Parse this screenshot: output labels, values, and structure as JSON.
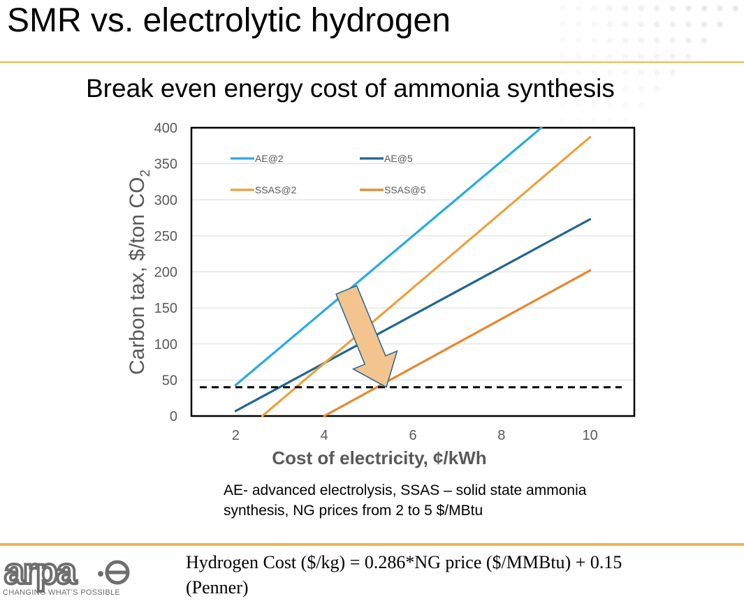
{
  "slide": {
    "title": "SMR vs. electrolytic hydrogen",
    "accent_color": "#f2b64f",
    "note": "AE- advanced electrolysis, SSAS – solid state ammonia synthesis, NG prices from 2 to 5 $/MBtu",
    "formula_line1": "Hydrogen Cost ($/kg) = 0.286*NG price ($/MMBtu) + 0.15",
    "formula_line2": "(Penner)",
    "logo_text": "arpa·e",
    "tagline": "CHANGING WHAT'S POSSIBLE"
  },
  "chart_data": {
    "type": "line",
    "title": "Break even energy cost of ammonia synthesis",
    "xlabel": "Cost of electricity, ¢/kWh",
    "ylabel": "Carbon tax, $/ton CO2",
    "xlim": [
      1,
      11
    ],
    "ylim": [
      0,
      400
    ],
    "xticks": [
      2,
      4,
      6,
      8,
      10
    ],
    "yticks": [
      0,
      50,
      100,
      150,
      200,
      250,
      300,
      350,
      400
    ],
    "grid": "horizontal",
    "legend": "top-left, inside plot, two columns",
    "series": [
      {
        "name": "AE@2",
        "color": "#29abe2",
        "x": [
          2,
          8.9
        ],
        "y": [
          43,
          400
        ]
      },
      {
        "name": "AE@5",
        "color": "#1f6591",
        "x": [
          2,
          10
        ],
        "y": [
          7,
          273
        ]
      },
      {
        "name": "SSAS@2",
        "color": "#eba13e",
        "x": [
          2.6,
          10
        ],
        "y": [
          0,
          387
        ]
      },
      {
        "name": "SSAS@5",
        "color": "#e8862e",
        "x": [
          4,
          10
        ],
        "y": [
          0,
          202
        ]
      }
    ],
    "threshold": {
      "y": 40,
      "style": "dashed",
      "color": "#000000"
    },
    "arrow": {
      "from": [
        4.5,
        175
      ],
      "to": [
        5.4,
        40
      ],
      "color": "#f4c48e"
    }
  }
}
